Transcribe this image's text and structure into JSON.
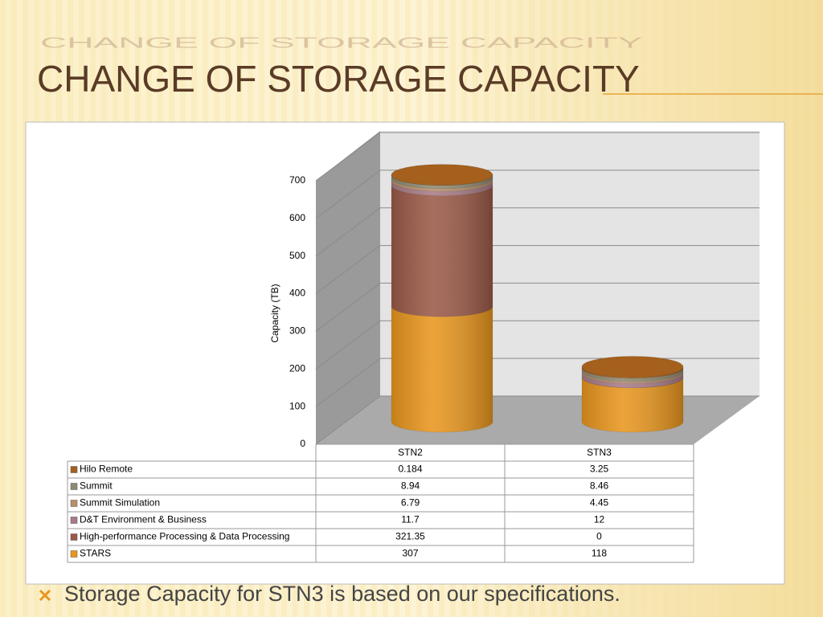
{
  "header": {
    "title": "CHANGE OF STORAGE CAPACITY"
  },
  "chart_data": {
    "type": "bar",
    "stacked": true,
    "y_label": "Capacity (TB)",
    "categories": [
      "STN2",
      "STN3"
    ],
    "ylim": [
      0,
      700
    ],
    "yticks": [
      0,
      100,
      200,
      300,
      400,
      500,
      600,
      700
    ],
    "grid": true,
    "series": [
      {
        "name": "STARS",
        "color": "#e8961e",
        "values": [
          307,
          118
        ]
      },
      {
        "name": "High-performance Processing & Data Processing",
        "color": "#9b5a48",
        "values": [
          321.35,
          0
        ]
      },
      {
        "name": "D&T Environment & Business",
        "color": "#a87c86",
        "values": [
          11.7,
          12
        ]
      },
      {
        "name": "Summit Simulation",
        "color": "#b8906c",
        "values": [
          6.79,
          4.45
        ]
      },
      {
        "name": "Summit",
        "color": "#8e8a72",
        "values": [
          8.94,
          8.46
        ]
      },
      {
        "name": "Hilo Remote",
        "color": "#a4601c",
        "values": [
          0.184,
          3.25
        ]
      }
    ]
  },
  "bullets": [
    "Storage Capacity for STN3 is based on our specifications."
  ]
}
